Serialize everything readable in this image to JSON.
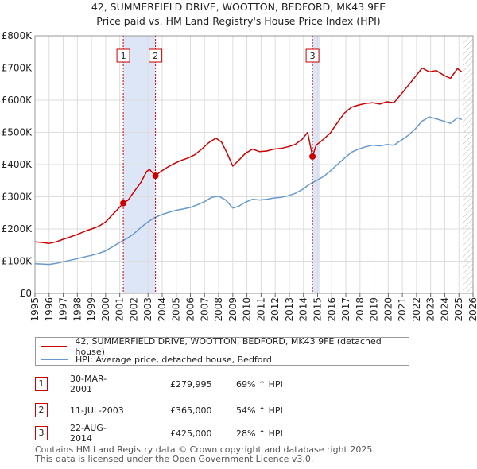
{
  "chart_data": {
    "type": "line",
    "title_line1": "42, SUMMERFIELD DRIVE, WOOTTON, BEDFORD, MK43 9FE",
    "title_line2": "Price paid vs. HM Land Registry's House Price Index (HPI)",
    "xlim": [
      1995,
      2026
    ],
    "ylim": [
      0,
      800000
    ],
    "x_ticks": [
      "1995",
      "1996",
      "1997",
      "1998",
      "1999",
      "2000",
      "2001",
      "2002",
      "2003",
      "2004",
      "2005",
      "2006",
      "2007",
      "2008",
      "2009",
      "2010",
      "2011",
      "2012",
      "2013",
      "2014",
      "2015",
      "2016",
      "2017",
      "2018",
      "2019",
      "2020",
      "2021",
      "2022",
      "2023",
      "2024",
      "2025",
      "2026"
    ],
    "y_ticks": [
      {
        "value": 0,
        "label": "£0"
      },
      {
        "value": 100000,
        "label": "£100K"
      },
      {
        "value": 200000,
        "label": "£200K"
      },
      {
        "value": 300000,
        "label": "£300K"
      },
      {
        "value": 400000,
        "label": "£400K"
      },
      {
        "value": 500000,
        "label": "£500K"
      },
      {
        "value": 600000,
        "label": "£600K"
      },
      {
        "value": 700000,
        "label": "£700K"
      },
      {
        "value": 800000,
        "label": "£800K"
      }
    ],
    "series": [
      {
        "name": "42, SUMMERFIELD DRIVE, WOOTTON, BEDFORD, MK43 9FE (detached house)",
        "color": "#cc0000",
        "points": [
          [
            1995.0,
            160000
          ],
          [
            1995.5,
            158000
          ],
          [
            1996.0,
            155000
          ],
          [
            1996.5,
            160000
          ],
          [
            1997.0,
            168000
          ],
          [
            1997.5,
            175000
          ],
          [
            1998.0,
            183000
          ],
          [
            1998.5,
            192000
          ],
          [
            1999.0,
            200000
          ],
          [
            1999.5,
            208000
          ],
          [
            2000.0,
            222000
          ],
          [
            2000.5,
            245000
          ],
          [
            2001.0,
            268000
          ],
          [
            2001.25,
            279995
          ],
          [
            2001.6,
            290000
          ],
          [
            2002.0,
            315000
          ],
          [
            2002.5,
            345000
          ],
          [
            2002.9,
            378000
          ],
          [
            2003.1,
            385000
          ],
          [
            2003.53,
            365000
          ],
          [
            2003.8,
            375000
          ],
          [
            2004.3,
            390000
          ],
          [
            2004.8,
            402000
          ],
          [
            2005.3,
            412000
          ],
          [
            2005.8,
            420000
          ],
          [
            2006.3,
            430000
          ],
          [
            2006.8,
            448000
          ],
          [
            2007.3,
            468000
          ],
          [
            2007.8,
            482000
          ],
          [
            2008.2,
            470000
          ],
          [
            2008.6,
            435000
          ],
          [
            2009.0,
            395000
          ],
          [
            2009.4,
            412000
          ],
          [
            2009.9,
            435000
          ],
          [
            2010.4,
            448000
          ],
          [
            2010.9,
            440000
          ],
          [
            2011.4,
            442000
          ],
          [
            2011.9,
            448000
          ],
          [
            2012.4,
            450000
          ],
          [
            2012.9,
            455000
          ],
          [
            2013.4,
            462000
          ],
          [
            2013.9,
            478000
          ],
          [
            2014.3,
            500000
          ],
          [
            2014.64,
            425000
          ],
          [
            2014.9,
            460000
          ],
          [
            2015.4,
            478000
          ],
          [
            2015.9,
            498000
          ],
          [
            2016.4,
            530000
          ],
          [
            2016.9,
            560000
          ],
          [
            2017.4,
            578000
          ],
          [
            2017.9,
            585000
          ],
          [
            2018.4,
            590000
          ],
          [
            2018.9,
            592000
          ],
          [
            2019.4,
            588000
          ],
          [
            2019.9,
            595000
          ],
          [
            2020.4,
            592000
          ],
          [
            2020.9,
            618000
          ],
          [
            2021.4,
            645000
          ],
          [
            2021.9,
            672000
          ],
          [
            2022.4,
            700000
          ],
          [
            2022.9,
            688000
          ],
          [
            2023.4,
            692000
          ],
          [
            2023.9,
            678000
          ],
          [
            2024.4,
            668000
          ],
          [
            2024.9,
            698000
          ],
          [
            2025.2,
            688000
          ]
        ]
      },
      {
        "name": "HPI: Average price, detached house, Bedford",
        "color": "#6699cc",
        "points": [
          [
            1995.0,
            92000
          ],
          [
            1995.5,
            91000
          ],
          [
            1996.0,
            90000
          ],
          [
            1996.5,
            93000
          ],
          [
            1997.0,
            98000
          ],
          [
            1997.5,
            103000
          ],
          [
            1998.0,
            108000
          ],
          [
            1998.5,
            113000
          ],
          [
            1999.0,
            118000
          ],
          [
            1999.5,
            124000
          ],
          [
            2000.0,
            132000
          ],
          [
            2000.5,
            145000
          ],
          [
            2001.0,
            158000
          ],
          [
            2001.5,
            170000
          ],
          [
            2002.0,
            185000
          ],
          [
            2002.5,
            205000
          ],
          [
            2003.0,
            222000
          ],
          [
            2003.5,
            236000
          ],
          [
            2004.0,
            245000
          ],
          [
            2004.5,
            252000
          ],
          [
            2005.0,
            258000
          ],
          [
            2005.5,
            262000
          ],
          [
            2006.0,
            267000
          ],
          [
            2006.5,
            275000
          ],
          [
            2007.0,
            285000
          ],
          [
            2007.5,
            298000
          ],
          [
            2008.0,
            302000
          ],
          [
            2008.5,
            290000
          ],
          [
            2009.0,
            265000
          ],
          [
            2009.4,
            270000
          ],
          [
            2009.9,
            283000
          ],
          [
            2010.4,
            292000
          ],
          [
            2010.9,
            290000
          ],
          [
            2011.4,
            292000
          ],
          [
            2011.9,
            296000
          ],
          [
            2012.4,
            298000
          ],
          [
            2012.9,
            303000
          ],
          [
            2013.4,
            310000
          ],
          [
            2013.9,
            322000
          ],
          [
            2014.4,
            338000
          ],
          [
            2014.9,
            350000
          ],
          [
            2015.4,
            362000
          ],
          [
            2015.9,
            380000
          ],
          [
            2016.4,
            400000
          ],
          [
            2016.9,
            420000
          ],
          [
            2017.4,
            438000
          ],
          [
            2017.9,
            448000
          ],
          [
            2018.4,
            455000
          ],
          [
            2018.9,
            460000
          ],
          [
            2019.4,
            458000
          ],
          [
            2019.9,
            462000
          ],
          [
            2020.4,
            460000
          ],
          [
            2020.9,
            475000
          ],
          [
            2021.4,
            490000
          ],
          [
            2021.9,
            510000
          ],
          [
            2022.4,
            535000
          ],
          [
            2022.9,
            548000
          ],
          [
            2023.4,
            542000
          ],
          [
            2023.9,
            535000
          ],
          [
            2024.4,
            528000
          ],
          [
            2024.9,
            545000
          ],
          [
            2025.2,
            540000
          ]
        ]
      }
    ],
    "events": [
      {
        "label": "1",
        "x": 2001.25,
        "value": 279995
      },
      {
        "label": "2",
        "x": 2003.53,
        "value": 365000
      },
      {
        "label": "3",
        "x": 2014.64,
        "value": 425000
      }
    ],
    "shade_ranges": [
      [
        2001.25,
        2003.53
      ],
      [
        2014.64,
        2015.2
      ]
    ],
    "hatch_from": 2025.25
  },
  "legend": {
    "property": "42, SUMMERFIELD DRIVE, WOOTTON, BEDFORD, MK43 9FE (detached house)",
    "hpi": "HPI: Average price, detached house, Bedford"
  },
  "transactions": [
    {
      "num": "1",
      "date": "30-MAR-2001",
      "price": "£279,995",
      "hpi": "69% ↑ HPI"
    },
    {
      "num": "2",
      "date": "11-JUL-2003",
      "price": "£365,000",
      "hpi": "54% ↑ HPI"
    },
    {
      "num": "3",
      "date": "22-AUG-2014",
      "price": "£425,000",
      "hpi": "28% ↑ HPI"
    }
  ],
  "footer": {
    "line1": "Contains HM Land Registry data © Crown copyright and database right 2025.",
    "line2": "This data is licensed under the Open Government Licence v3.0."
  },
  "colors": {
    "property": "#cc0000",
    "hpi": "#6699cc",
    "shade": "#dde6f7",
    "grid": "#dddddd"
  }
}
